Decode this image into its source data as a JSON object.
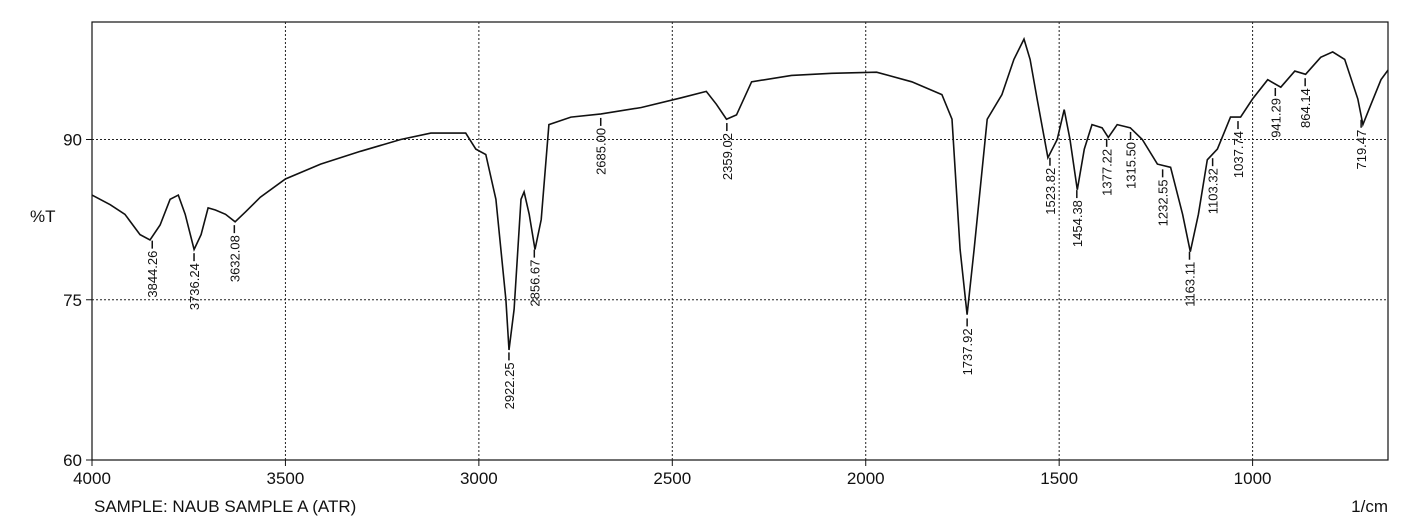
{
  "chart_data": {
    "type": "line",
    "color": "#111111",
    "x": [
      4000,
      3953,
      3915,
      3876,
      3850,
      3824,
      3798,
      3777,
      3759,
      3736,
      3718,
      3700,
      3681,
      3655,
      3630,
      3604,
      3565,
      3500,
      3409,
      3306,
      3202,
      3124,
      3034,
      3008,
      2982,
      2956,
      2930,
      2922,
      2909,
      2891,
      2883,
      2870,
      2855,
      2839,
      2819,
      2762,
      2684,
      2580,
      2477,
      2412,
      2386,
      2360,
      2334,
      2295,
      2192,
      2088,
      1972,
      1881,
      1803,
      1777,
      1756,
      1738,
      1720,
      1686,
      1648,
      1617,
      1591,
      1575,
      1557,
      1529,
      1505,
      1487,
      1472,
      1453,
      1435,
      1415,
      1389,
      1373,
      1350,
      1316,
      1285,
      1246,
      1212,
      1181,
      1161,
      1140,
      1117,
      1091,
      1057,
      1031,
      1000,
      961,
      927,
      891,
      863,
      824,
      793,
      762,
      728,
      715,
      694,
      668,
      650
    ],
    "values": [
      84.8,
      83.9,
      83.0,
      81.1,
      80.6,
      82.0,
      84.4,
      84.8,
      83.0,
      79.7,
      81.1,
      83.6,
      83.4,
      83.0,
      82.3,
      83.2,
      84.6,
      86.3,
      87.7,
      88.9,
      90.0,
      90.6,
      90.6,
      89.1,
      88.6,
      84.4,
      75.0,
      70.3,
      74.1,
      84.4,
      85.1,
      83.0,
      79.7,
      82.5,
      91.4,
      92.1,
      92.4,
      93.0,
      93.9,
      94.5,
      93.3,
      91.9,
      92.3,
      95.4,
      96.0,
      96.2,
      96.3,
      95.4,
      94.2,
      91.9,
      79.7,
      73.6,
      79.7,
      91.9,
      94.2,
      97.5,
      99.4,
      97.5,
      93.8,
      88.3,
      90.0,
      92.8,
      90.0,
      85.3,
      89.1,
      91.4,
      91.1,
      90.2,
      91.4,
      91.1,
      90.0,
      87.7,
      87.4,
      83.0,
      79.5,
      83.0,
      88.1,
      89.1,
      92.1,
      92.1,
      93.8,
      95.6,
      94.9,
      96.4,
      96.1,
      97.7,
      98.2,
      97.5,
      93.8,
      91.4,
      93.3,
      95.6,
      96.5
    ],
    "peaks": [
      3844.26,
      3736.24,
      3632.08,
      2922.25,
      2856.67,
      {
        "value": 2685,
        "label": "2685.00"
      },
      2359.02,
      1737.92,
      1523.82,
      1454.38,
      1377.22,
      {
        "value": 1315.5,
        "label": "1315.50"
      },
      1232.55,
      1163.11,
      1103.32,
      1037.74,
      941.29,
      864.14,
      719.47
    ],
    "xlim": [
      4000,
      650
    ],
    "xticks": [
      4000,
      3500,
      3000,
      2500,
      2000,
      1500,
      1000
    ],
    "ylim": [
      60,
      101
    ],
    "yticks": [
      60,
      75,
      90
    ],
    "grid": true,
    "y_label": "%T",
    "x_label": "1/cm",
    "sample": "SAMPLE: NAUB SAMPLE A (ATR)"
  }
}
